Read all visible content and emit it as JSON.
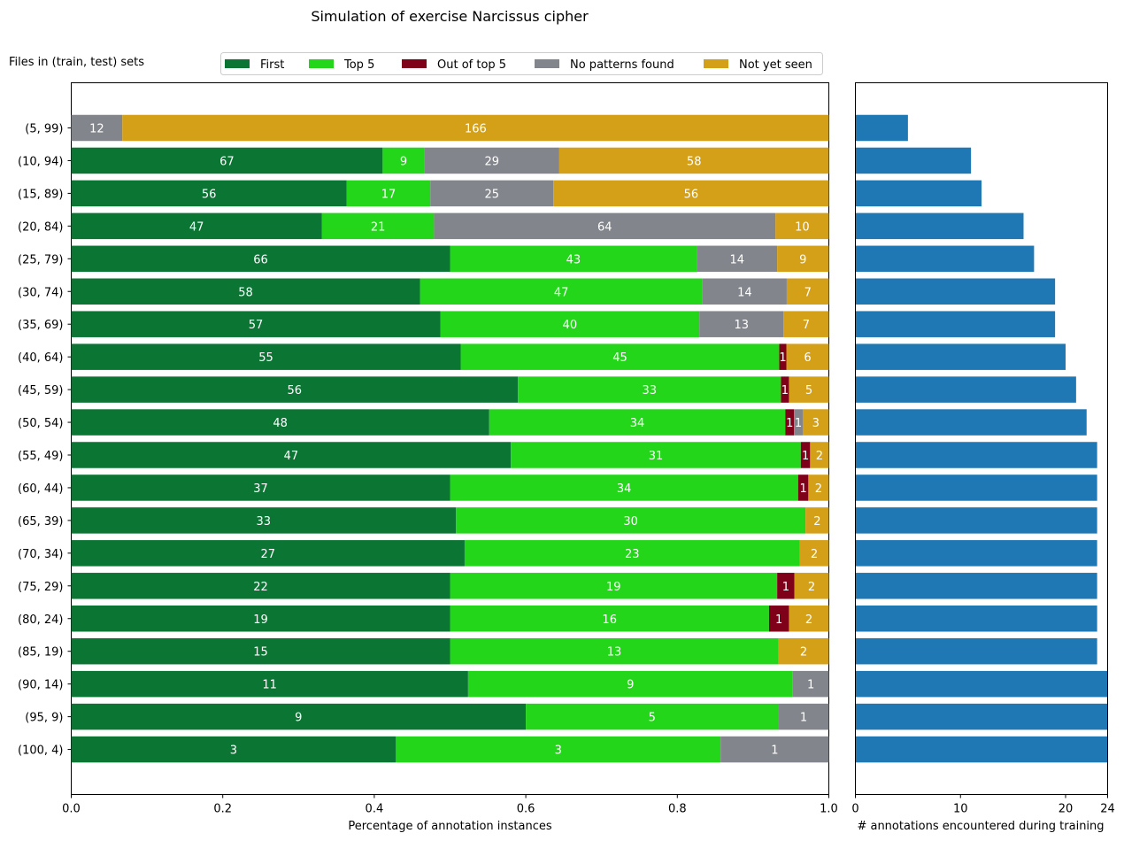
{
  "chart_data": [
    {
      "type": "bar",
      "orientation": "horizontal",
      "stacked": true,
      "normalized": true,
      "title": "Simulation of exercise Narcissus cipher",
      "ylabel": "Files in (train, test) sets",
      "xlabel": "Percentage of annotation instances",
      "xlim": [
        0,
        1
      ],
      "x_ticks": [
        "0.0",
        "0.2",
        "0.4",
        "0.6",
        "0.8",
        "1.0"
      ],
      "legend_placement": "top",
      "categories": [
        "(5, 99)",
        "(10, 94)",
        "(15, 89)",
        "(20, 84)",
        "(25, 79)",
        "(30, 74)",
        "(35, 69)",
        "(40, 64)",
        "(45, 59)",
        "(50, 54)",
        "(55, 49)",
        "(60, 44)",
        "(65, 39)",
        "(70, 34)",
        "(75, 29)",
        "(80, 24)",
        "(85, 19)",
        "(90, 14)",
        "(95, 9)",
        "(100, 4)"
      ],
      "series": [
        {
          "name": "First",
          "color": "#0b7534",
          "values": [
            0,
            67,
            56,
            47,
            66,
            58,
            57,
            55,
            56,
            48,
            47,
            37,
            33,
            27,
            22,
            19,
            15,
            11,
            9,
            3
          ]
        },
        {
          "name": "Top 5",
          "color": "#23d61a",
          "values": [
            0,
            9,
            17,
            21,
            43,
            47,
            40,
            45,
            33,
            34,
            31,
            34,
            30,
            23,
            19,
            16,
            13,
            9,
            5,
            3
          ]
        },
        {
          "name": "Out of top 5",
          "color": "#7f0019",
          "values": [
            0,
            0,
            0,
            0,
            0,
            0,
            0,
            1,
            1,
            1,
            1,
            1,
            0,
            0,
            1,
            1,
            0,
            0,
            0,
            0
          ]
        },
        {
          "name": "No patterns found",
          "color": "#82858b",
          "values": [
            12,
            29,
            25,
            64,
            14,
            14,
            13,
            0,
            0,
            1,
            0,
            0,
            0,
            0,
            0,
            0,
            0,
            1,
            1,
            1
          ]
        },
        {
          "name": "Not yet seen",
          "color": "#d4a017",
          "values": [
            166,
            58,
            56,
            10,
            9,
            7,
            7,
            6,
            5,
            3,
            2,
            2,
            2,
            2,
            2,
            2,
            2,
            0,
            0,
            0
          ]
        }
      ]
    },
    {
      "type": "bar",
      "orientation": "horizontal",
      "xlabel": "# annotations encountered during training",
      "xlim": [
        0,
        24
      ],
      "x_ticks": [
        "0",
        "10",
        "20",
        "24"
      ],
      "color": "#1f77b4",
      "categories": [
        "(5, 99)",
        "(10, 94)",
        "(15, 89)",
        "(20, 84)",
        "(25, 79)",
        "(30, 74)",
        "(35, 69)",
        "(40, 64)",
        "(45, 59)",
        "(50, 54)",
        "(55, 49)",
        "(60, 44)",
        "(65, 39)",
        "(70, 34)",
        "(75, 29)",
        "(80, 24)",
        "(85, 19)",
        "(90, 14)",
        "(95, 9)",
        "(100, 4)"
      ],
      "values": [
        5,
        11,
        12,
        16,
        17,
        19,
        19,
        20,
        21,
        22,
        23,
        23,
        23,
        23,
        23,
        23,
        23,
        24,
        24,
        24
      ]
    }
  ]
}
